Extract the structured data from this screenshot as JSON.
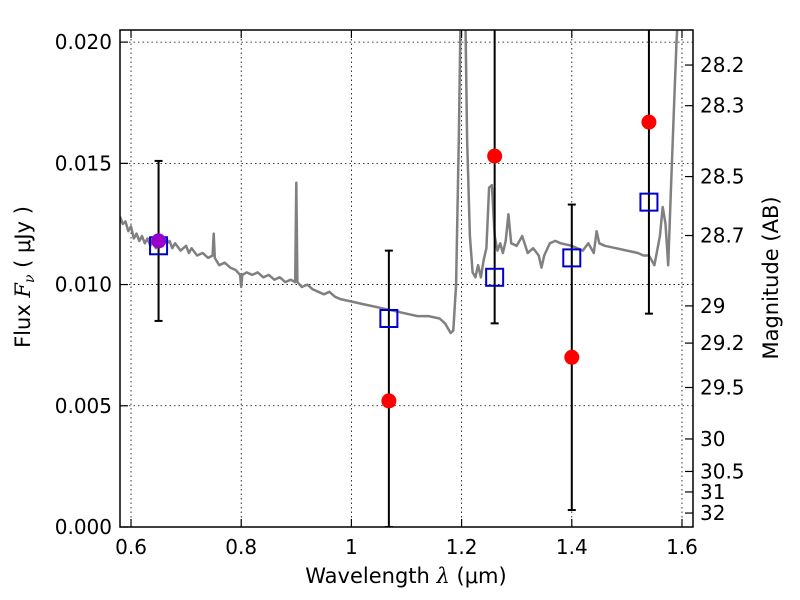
{
  "chart_data": {
    "type": "scatter",
    "xlabel": {
      "prefix": "Wavelength  ",
      "symbol": "λ",
      "unit": " (μm)"
    },
    "ylabel": {
      "prefix": "Flux  ",
      "symbol": "F",
      "subscript": "ν",
      "unit": "  ( μJy )"
    },
    "y2label": "Magnitude (AB)",
    "xlim": [
      0.58,
      1.62
    ],
    "ylim": [
      0.0,
      0.0205
    ],
    "grid": true,
    "xticks": [
      {
        "value": 0.6,
        "label": "0.6"
      },
      {
        "value": 0.8,
        "label": "0.8"
      },
      {
        "value": 1.0,
        "label": "1"
      },
      {
        "value": 1.2,
        "label": "1.2"
      },
      {
        "value": 1.4,
        "label": "1.4"
      },
      {
        "value": 1.6,
        "label": "1.6"
      }
    ],
    "yticks": [
      {
        "value": 0.0,
        "label": "0.000"
      },
      {
        "value": 0.005,
        "label": "0.005"
      },
      {
        "value": 0.01,
        "label": "0.010"
      },
      {
        "value": 0.015,
        "label": "0.015"
      },
      {
        "value": 0.02,
        "label": "0.020"
      }
    ],
    "y2ticks": [
      {
        "mag": 28.2,
        "label": "28.2"
      },
      {
        "mag": 28.3,
        "label": "28.3"
      },
      {
        "mag": 28.5,
        "label": "28.5"
      },
      {
        "mag": 28.7,
        "label": "28.7"
      },
      {
        "mag": 29,
        "label": "29"
      },
      {
        "mag": 29.2,
        "label": "29.2"
      },
      {
        "mag": 29.5,
        "label": "29.5"
      },
      {
        "mag": 30,
        "label": "30"
      },
      {
        "mag": 30.5,
        "label": "30.5"
      },
      {
        "mag": 31,
        "label": "31"
      },
      {
        "mag": 32,
        "label": "32"
      }
    ],
    "series": [
      {
        "role": "model-spectrum",
        "style": "line",
        "color": "#808080",
        "points": [
          [
            0.58,
            0.0128
          ],
          [
            0.585,
            0.0125
          ],
          [
            0.59,
            0.0126
          ],
          [
            0.595,
            0.0122
          ],
          [
            0.6,
            0.0124
          ],
          [
            0.605,
            0.0119
          ],
          [
            0.61,
            0.0121
          ],
          [
            0.615,
            0.0118
          ],
          [
            0.62,
            0.012
          ],
          [
            0.625,
            0.0117
          ],
          [
            0.63,
            0.0119
          ],
          [
            0.635,
            0.0116
          ],
          [
            0.64,
            0.0118
          ],
          [
            0.645,
            0.0115
          ],
          [
            0.65,
            0.0117
          ],
          [
            0.66,
            0.0119
          ],
          [
            0.665,
            0.0117
          ],
          [
            0.67,
            0.0118
          ],
          [
            0.675,
            0.0115
          ],
          [
            0.68,
            0.0117
          ],
          [
            0.69,
            0.0114
          ],
          [
            0.7,
            0.0116
          ],
          [
            0.705,
            0.0113
          ],
          [
            0.71,
            0.0115
          ],
          [
            0.72,
            0.0112
          ],
          [
            0.73,
            0.0113
          ],
          [
            0.74,
            0.0111
          ],
          [
            0.748,
            0.0112
          ],
          [
            0.75,
            0.0121
          ],
          [
            0.752,
            0.0111
          ],
          [
            0.76,
            0.0108
          ],
          [
            0.77,
            0.0109
          ],
          [
            0.78,
            0.0107
          ],
          [
            0.79,
            0.0106
          ],
          [
            0.798,
            0.0104
          ],
          [
            0.8,
            0.0099
          ],
          [
            0.802,
            0.0104
          ],
          [
            0.81,
            0.0105
          ],
          [
            0.82,
            0.0104
          ],
          [
            0.83,
            0.0105
          ],
          [
            0.84,
            0.0103
          ],
          [
            0.85,
            0.0104
          ],
          [
            0.86,
            0.0102
          ],
          [
            0.87,
            0.0103
          ],
          [
            0.88,
            0.0101
          ],
          [
            0.89,
            0.0102
          ],
          [
            0.898,
            0.0101
          ],
          [
            0.9,
            0.0142
          ],
          [
            0.902,
            0.0101
          ],
          [
            0.91,
            0.0099
          ],
          [
            0.92,
            0.01
          ],
          [
            0.93,
            0.0098
          ],
          [
            0.94,
            0.0097
          ],
          [
            0.95,
            0.0096
          ],
          [
            0.96,
            0.0097
          ],
          [
            0.97,
            0.0095
          ],
          [
            0.98,
            0.0094
          ],
          [
            1.0,
            0.0093
          ],
          [
            1.02,
            0.0092
          ],
          [
            1.04,
            0.0091
          ],
          [
            1.06,
            0.009
          ],
          [
            1.08,
            0.0089
          ],
          [
            1.1,
            0.0088
          ],
          [
            1.12,
            0.0087
          ],
          [
            1.14,
            0.0087
          ],
          [
            1.16,
            0.0086
          ],
          [
            1.17,
            0.0084
          ],
          [
            1.18,
            0.008
          ],
          [
            1.185,
            0.0081
          ],
          [
            1.19,
            0.01
          ],
          [
            1.195,
            0.016
          ],
          [
            1.2,
            0.024
          ],
          [
            1.205,
            0.024
          ],
          [
            1.21,
            0.016
          ],
          [
            1.215,
            0.012
          ],
          [
            1.22,
            0.0105
          ],
          [
            1.225,
            0.0103
          ],
          [
            1.23,
            0.0108
          ],
          [
            1.235,
            0.0103
          ],
          [
            1.24,
            0.011
          ],
          [
            1.245,
            0.0115
          ],
          [
            1.25,
            0.014
          ],
          [
            1.255,
            0.0141
          ],
          [
            1.26,
            0.012
          ],
          [
            1.265,
            0.0114
          ],
          [
            1.27,
            0.0117
          ],
          [
            1.275,
            0.0113
          ],
          [
            1.28,
            0.0118
          ],
          [
            1.285,
            0.0129
          ],
          [
            1.29,
            0.0117
          ],
          [
            1.3,
            0.0116
          ],
          [
            1.31,
            0.012
          ],
          [
            1.32,
            0.0113
          ],
          [
            1.33,
            0.0115
          ],
          [
            1.34,
            0.0112
          ],
          [
            1.345,
            0.0107
          ],
          [
            1.35,
            0.0112
          ],
          [
            1.36,
            0.0117
          ],
          [
            1.37,
            0.0118
          ],
          [
            1.38,
            0.0117
          ],
          [
            1.4,
            0.0116
          ],
          [
            1.42,
            0.0114
          ],
          [
            1.43,
            0.0117
          ],
          [
            1.44,
            0.0113
          ],
          [
            1.445,
            0.0122
          ],
          [
            1.45,
            0.0117
          ],
          [
            1.46,
            0.0116
          ],
          [
            1.48,
            0.0115
          ],
          [
            1.5,
            0.0114
          ],
          [
            1.52,
            0.0113
          ],
          [
            1.53,
            0.0112
          ],
          [
            1.54,
            0.0112
          ],
          [
            1.55,
            0.0108
          ],
          [
            1.56,
            0.012
          ],
          [
            1.565,
            0.0132
          ],
          [
            1.57,
            0.0125
          ],
          [
            1.575,
            0.0108
          ],
          [
            1.58,
            0.014
          ],
          [
            1.585,
            0.017
          ],
          [
            1.59,
            0.02
          ],
          [
            1.595,
            0.022
          ],
          [
            1.6,
            0.024
          ]
        ]
      },
      {
        "role": "observed-flux",
        "style": "marker",
        "marker": "circle",
        "color": "#ff0000",
        "points": [
          {
            "x": 0.65,
            "y": 0.0118,
            "yerr_low": 0.0085,
            "yerr_high": 0.0151
          },
          {
            "x": 1.068,
            "y": 0.0052,
            "yerr_low": 0.0,
            "yerr_high": 0.0114
          },
          {
            "x": 1.26,
            "y": 0.0153,
            "yerr_low": 0.0084,
            "yerr_high": 0.024
          },
          {
            "x": 1.4,
            "y": 0.007,
            "yerr_low": 0.0007,
            "yerr_high": 0.0133
          },
          {
            "x": 1.54,
            "y": 0.0167,
            "yerr_low": 0.0088,
            "yerr_high": 0.024
          }
        ]
      },
      {
        "role": "model-bandpass-flux",
        "style": "marker",
        "marker": "open-square",
        "color": "#0000cc",
        "points": [
          {
            "x": 0.65,
            "y": 0.0116
          },
          {
            "x": 1.068,
            "y": 0.0086
          },
          {
            "x": 1.26,
            "y": 0.0103
          },
          {
            "x": 1.4,
            "y": 0.0111
          },
          {
            "x": 1.54,
            "y": 0.0134
          }
        ]
      }
    ],
    "overlap_marker_color": "#9900cc"
  }
}
